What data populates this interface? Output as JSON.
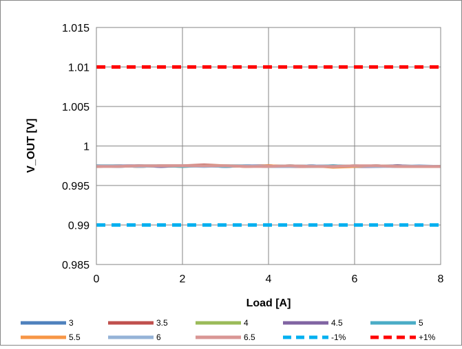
{
  "chart_data": {
    "type": "line",
    "xlabel": "Load [A]",
    "ylabel": "V_OUT [V]",
    "xlim": [
      0,
      8
    ],
    "ylim": [
      0.985,
      1.015
    ],
    "x_ticks": [
      "0",
      "2",
      "4",
      "6",
      "8"
    ],
    "y_ticks": [
      "0.985",
      "0.99",
      "0.995",
      "1",
      "1.005",
      "1.01",
      "1.015"
    ],
    "grid": true,
    "legend_position": "bottom",
    "x": [
      0,
      0.5,
      1,
      1.5,
      2,
      2.5,
      3,
      3.5,
      4,
      4.5,
      5,
      5.5,
      6,
      6.5,
      7,
      7.5,
      8
    ],
    "series": [
      {
        "name": "3",
        "color": "#4f81bd",
        "style": "solid",
        "values": [
          0.9975,
          0.9974,
          0.9975,
          0.9974,
          0.9975,
          0.9975,
          0.9974,
          0.9975,
          0.9974,
          0.9974,
          0.9975,
          0.9974,
          0.9974,
          0.9975,
          0.9974,
          0.9974,
          0.9974
        ]
      },
      {
        "name": "3.5",
        "color": "#c0504d",
        "style": "solid",
        "values": [
          0.9974,
          0.9975,
          0.9974,
          0.9975,
          0.9975,
          0.9976,
          0.9975,
          0.9974,
          0.9975,
          0.9974,
          0.9974,
          0.9975,
          0.9974,
          0.9974,
          0.9975,
          0.9974,
          0.9974
        ]
      },
      {
        "name": "4",
        "color": "#9bbb59",
        "style": "solid",
        "values": [
          0.9975,
          0.9975,
          0.9974,
          0.9975,
          0.9974,
          0.9975,
          0.9975,
          0.9975,
          0.9974,
          0.9975,
          0.9974,
          0.9974,
          0.9975,
          0.9974,
          0.9975,
          0.9974,
          0.9974
        ]
      },
      {
        "name": "4.5",
        "color": "#8064a2",
        "style": "solid",
        "values": [
          0.9974,
          0.9975,
          0.9975,
          0.9974,
          0.9975,
          0.9975,
          0.9974,
          0.9975,
          0.9975,
          0.9974,
          0.9975,
          0.9974,
          0.9974,
          0.9974,
          0.9975,
          0.9974,
          0.9974
        ]
      },
      {
        "name": "5",
        "color": "#4bacc6",
        "style": "solid",
        "values": [
          0.9975,
          0.9974,
          0.9975,
          0.9975,
          0.9974,
          0.9975,
          0.9974,
          0.9975,
          0.9974,
          0.9975,
          0.9974,
          0.9975,
          0.9974,
          0.9975,
          0.9974,
          0.9974,
          0.9974
        ]
      },
      {
        "name": "5.5",
        "color": "#f79646",
        "style": "solid",
        "values": [
          0.9974,
          0.9975,
          0.9974,
          0.9975,
          0.9975,
          0.9975,
          0.9975,
          0.9974,
          0.9975,
          0.9974,
          0.9975,
          0.9973,
          0.9974,
          0.9975,
          0.9974,
          0.9974,
          0.9974
        ]
      },
      {
        "name": "6",
        "color": "#95b3d7",
        "style": "solid",
        "values": [
          0.9975,
          0.9975,
          0.9974,
          0.9975,
          0.9975,
          0.9974,
          0.9975,
          0.9975,
          0.9974,
          0.9974,
          0.9975,
          0.9974,
          0.9975,
          0.9974,
          0.9974,
          0.9975,
          0.9974
        ]
      },
      {
        "name": "6.5",
        "color": "#d99694",
        "style": "solid",
        "values": [
          0.9974,
          0.9974,
          0.9975,
          0.9975,
          0.9975,
          0.9975,
          0.9975,
          0.9974,
          0.9974,
          0.9975,
          0.9974,
          0.9974,
          0.9975,
          0.9975,
          0.9974,
          0.9974,
          0.9974
        ]
      },
      {
        "name": "-1%",
        "color": "#00b0f0",
        "style": "dashed",
        "values": [
          0.99,
          0.99,
          0.99,
          0.99,
          0.99,
          0.99,
          0.99,
          0.99,
          0.99,
          0.99,
          0.99,
          0.99,
          0.99,
          0.99,
          0.99,
          0.99,
          0.99
        ]
      },
      {
        "name": "+1%",
        "color": "#ff0000",
        "style": "dashed",
        "values": [
          1.01,
          1.01,
          1.01,
          1.01,
          1.01,
          1.01,
          1.01,
          1.01,
          1.01,
          1.01,
          1.01,
          1.01,
          1.01,
          1.01,
          1.01,
          1.01,
          1.01
        ]
      }
    ]
  }
}
